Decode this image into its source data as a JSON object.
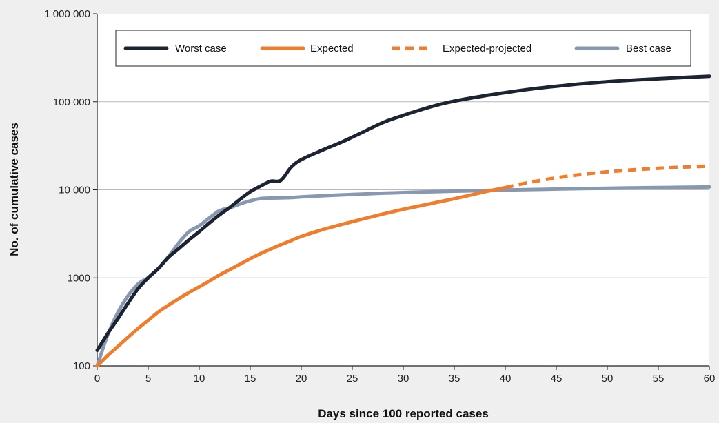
{
  "chart_data": {
    "type": "line",
    "title": "",
    "xlabel": "Days since 100 reported cases",
    "ylabel": "No. of  cumulative cases",
    "xlim": [
      0,
      60
    ],
    "ylim": [
      100,
      1000000
    ],
    "y_scale": "log",
    "grid": "horizontal",
    "legend_position": "top",
    "x_ticks": [
      {
        "value": 0,
        "label": "0"
      },
      {
        "value": 5,
        "label": "5"
      },
      {
        "value": 10,
        "label": "10"
      },
      {
        "value": 15,
        "label": "15"
      },
      {
        "value": 20,
        "label": "20"
      },
      {
        "value": 25,
        "label": "25"
      },
      {
        "value": 30,
        "label": "30"
      },
      {
        "value": 35,
        "label": "35"
      },
      {
        "value": 40,
        "label": "40"
      },
      {
        "value": 45,
        "label": "45"
      },
      {
        "value": 50,
        "label": "50"
      },
      {
        "value": 55,
        "label": "55"
      },
      {
        "value": 60,
        "label": "60"
      }
    ],
    "y_ticks": [
      {
        "value": 100,
        "label": "100"
      },
      {
        "value": 1000,
        "label": "1000"
      },
      {
        "value": 10000,
        "label": "10 000"
      },
      {
        "value": 100000,
        "label": "100 000"
      },
      {
        "value": 1000000,
        "label": "1 000 000"
      }
    ],
    "series": [
      {
        "name": "Worst case",
        "color": "#1c2331",
        "dash": "solid",
        "x": [
          0,
          1,
          2,
          3,
          4,
          5,
          6,
          7,
          8,
          9,
          10,
          11,
          12,
          13,
          14,
          15,
          16,
          17,
          18,
          19,
          20,
          22,
          24,
          26,
          28,
          30,
          32,
          34,
          36,
          38,
          40,
          42,
          44,
          46,
          48,
          50,
          52,
          54,
          56,
          58,
          60
        ],
        "y": [
          150,
          230,
          340,
          510,
          750,
          1000,
          1280,
          1720,
          2150,
          2700,
          3350,
          4200,
          5200,
          6300,
          7800,
          9500,
          11000,
          12500,
          12800,
          18000,
          22000,
          28000,
          35000,
          45000,
          58000,
          70000,
          83000,
          96000,
          107000,
          117000,
          127000,
          137000,
          146000,
          154000,
          162000,
          169000,
          175000,
          180000,
          185000,
          190000,
          195000
        ]
      },
      {
        "name": "Expected",
        "color": "#ef7d2e",
        "dash": "solid",
        "x": [
          0,
          1,
          2,
          3,
          4,
          5,
          6,
          7,
          8,
          9,
          10,
          11,
          12,
          13,
          14,
          15,
          16,
          17,
          18,
          19,
          20,
          22,
          24,
          26,
          28,
          30,
          32,
          34,
          36,
          38,
          40
        ],
        "y": [
          100,
          130,
          165,
          210,
          265,
          330,
          410,
          490,
          580,
          680,
          790,
          920,
          1080,
          1240,
          1430,
          1650,
          1880,
          2120,
          2380,
          2650,
          2950,
          3500,
          4050,
          4650,
          5300,
          6000,
          6700,
          7500,
          8400,
          9500,
          10600
        ]
      },
      {
        "name": "Expected-projected",
        "color": "#ef7d2e",
        "dash": "dashed",
        "x": [
          40,
          42,
          44,
          46,
          48,
          50,
          52,
          54,
          56,
          58,
          60
        ],
        "y": [
          10600,
          11900,
          13100,
          14200,
          15200,
          16000,
          16700,
          17300,
          17800,
          18200,
          18600
        ]
      },
      {
        "name": "Best case",
        "color": "#8798b0",
        "dash": "solid",
        "x": [
          0,
          1,
          2,
          3,
          4,
          5,
          6,
          7,
          8,
          9,
          10,
          11,
          12,
          13,
          14,
          15,
          16,
          17,
          18,
          19,
          20,
          22,
          24,
          26,
          28,
          30,
          32,
          34,
          36,
          38,
          40,
          42,
          44,
          46,
          48,
          50,
          52,
          54,
          56,
          58,
          60
        ],
        "y": [
          100,
          220,
          400,
          620,
          850,
          1010,
          1280,
          1750,
          2500,
          3350,
          3900,
          4800,
          5800,
          6250,
          6900,
          7500,
          7950,
          8050,
          8100,
          8150,
          8300,
          8550,
          8750,
          8950,
          9150,
          9300,
          9450,
          9580,
          9700,
          9820,
          9940,
          10050,
          10150,
          10250,
          10340,
          10420,
          10500,
          10570,
          10640,
          10700,
          10760
        ]
      }
    ]
  }
}
